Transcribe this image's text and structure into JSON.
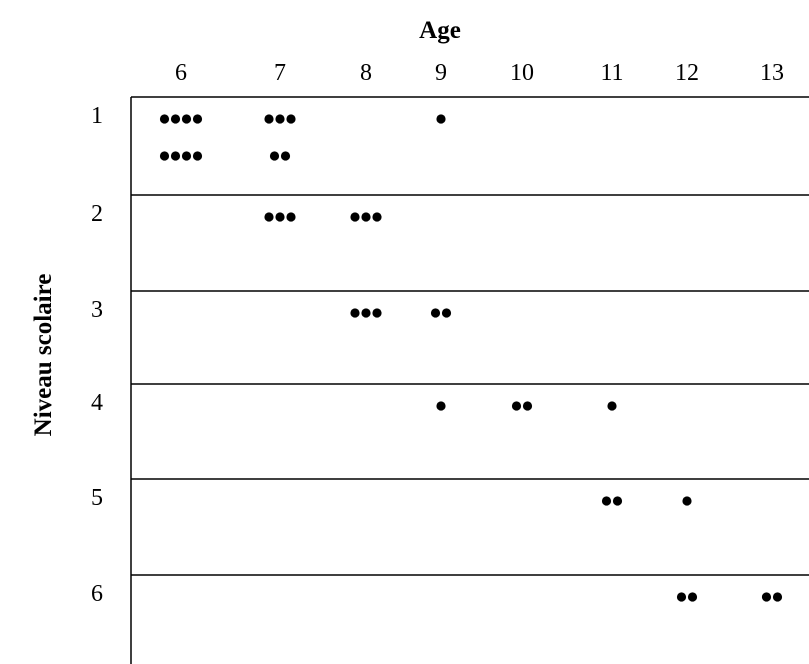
{
  "chart_data": {
    "type": "scatter",
    "xlabel": "Age",
    "ylabel": "Niveau scolaire",
    "x_ticks": [
      "6",
      "7",
      "8",
      "9",
      "10",
      "11",
      "12",
      "13"
    ],
    "y_ticks": [
      "1",
      "2",
      "3",
      "4",
      "5",
      "6"
    ],
    "points": [
      {
        "x": 6,
        "y": 1,
        "count": 8,
        "rows": [
          4,
          4
        ]
      },
      {
        "x": 7,
        "y": 1,
        "count": 5,
        "rows": [
          3,
          2
        ]
      },
      {
        "x": 9,
        "y": 1,
        "count": 1,
        "rows": [
          1
        ]
      },
      {
        "x": 7,
        "y": 2,
        "count": 3,
        "rows": [
          3
        ]
      },
      {
        "x": 8,
        "y": 2,
        "count": 3,
        "rows": [
          3
        ]
      },
      {
        "x": 8,
        "y": 3,
        "count": 3,
        "rows": [
          3
        ]
      },
      {
        "x": 9,
        "y": 3,
        "count": 2,
        "rows": [
          2
        ]
      },
      {
        "x": 9,
        "y": 4,
        "count": 1,
        "rows": [
          1
        ]
      },
      {
        "x": 10,
        "y": 4,
        "count": 2,
        "rows": [
          2
        ]
      },
      {
        "x": 11,
        "y": 4,
        "count": 1,
        "rows": [
          1
        ]
      },
      {
        "x": 11,
        "y": 5,
        "count": 2,
        "rows": [
          2
        ]
      },
      {
        "x": 12,
        "y": 5,
        "count": 1,
        "rows": [
          1
        ]
      },
      {
        "x": 12,
        "y": 6,
        "count": 2,
        "rows": [
          2
        ]
      },
      {
        "x": 13,
        "y": 6,
        "count": 2,
        "rows": [
          2
        ]
      }
    ],
    "grid": "horizontal",
    "dot_color": "#000000"
  }
}
